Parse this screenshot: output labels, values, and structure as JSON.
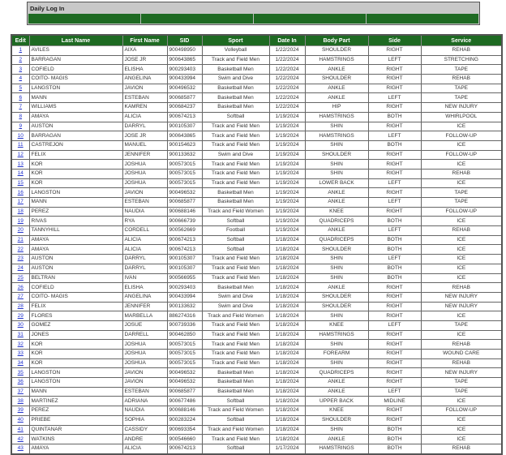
{
  "panel": {
    "title": "Daily Log In"
  },
  "colors": {
    "header_green": "#1e6a22",
    "panel_gray": "#c8c8c8",
    "link": "#2233cc"
  },
  "table": {
    "headers": [
      "Edit",
      "Last Name",
      "First Name",
      "SID",
      "Sport",
      "Date In",
      "Body Part",
      "Side",
      "Service"
    ],
    "rows": [
      [
        "1",
        "AVILES",
        "AIXA",
        "900498950",
        "Volleyball",
        "1/22/2024",
        "SHOULDER",
        "RIGHT",
        "REHAB"
      ],
      [
        "2",
        "BARRAGAN",
        "JOSE JR",
        "900643865",
        "Track and Field Men",
        "1/22/2024",
        "HAMSTRINGS",
        "LEFT",
        "STRETCHING"
      ],
      [
        "3",
        "COFIELD",
        "ELISHA",
        "900293403",
        "Basketball Men",
        "1/22/2024",
        "ANKLE",
        "RIGHT",
        "TAPE"
      ],
      [
        "4",
        "COITO- MAGIS",
        "ANGELINA",
        "900433994",
        "Swim and Dive",
        "1/22/2024",
        "SHOULDER",
        "RIGHT",
        "REHAB"
      ],
      [
        "5",
        "LANGSTON",
        "JAVION",
        "900496532",
        "Basketball Men",
        "1/22/2024",
        "ANKLE",
        "RIGHT",
        "TAPE"
      ],
      [
        "6",
        "MANN",
        "ESTEBAN",
        "900685877",
        "Basketball Men",
        "1/22/2024",
        "ANKLE",
        "LEFT",
        "TAPE"
      ],
      [
        "7",
        "WILLIAMS",
        "KAMREN",
        "900684237",
        "Basketball Men",
        "1/22/2024",
        "HIP",
        "RIGHT",
        "NEW INJURY"
      ],
      [
        "8",
        "AMAYA",
        "ALICIA",
        "900674213",
        "Softball",
        "1/19/2024",
        "HAMSTRINGS",
        "BOTH",
        "WHIRLPOOL"
      ],
      [
        "9",
        "AUSTON",
        "DARRYL",
        "900105307",
        "Track and Field Men",
        "1/19/2024",
        "SHIN",
        "RIGHT",
        "ICE"
      ],
      [
        "10",
        "BARRAGAN",
        "JOSE JR",
        "900643865",
        "Track and Field Men",
        "1/19/2024",
        "HAMSTRINGS",
        "LEFT",
        "FOLLOW-UP"
      ],
      [
        "11",
        "CASTREJON",
        "MANUEL",
        "900154623",
        "Track and Field Men",
        "1/19/2024",
        "SHIN",
        "BOTH",
        "ICE"
      ],
      [
        "12",
        "FELIX",
        "JENNIFER",
        "900133632",
        "Swim and Dive",
        "1/19/2024",
        "SHOULDER",
        "RIGHT",
        "FOLLOW-UP"
      ],
      [
        "13",
        "KOR",
        "JOSHUA",
        "900573015",
        "Track and Field Men",
        "1/19/2024",
        "SHIN",
        "RIGHT",
        "ICE"
      ],
      [
        "14",
        "KOR",
        "JOSHUA",
        "900573015",
        "Track and Field Men",
        "1/19/2024",
        "SHIN",
        "RIGHT",
        "REHAB"
      ],
      [
        "15",
        "KOR",
        "JOSHUA",
        "900573015",
        "Track and Field Men",
        "1/19/2024",
        "LOWER BACK",
        "LEFT",
        "ICE"
      ],
      [
        "16",
        "LANGSTON",
        "JAVION",
        "900496532",
        "Basketball Men",
        "1/19/2024",
        "ANKLE",
        "RIGHT",
        "TAPE"
      ],
      [
        "17",
        "MANN",
        "ESTEBAN",
        "900685877",
        "Basketball Men",
        "1/19/2024",
        "ANKLE",
        "LEFT",
        "TAPE"
      ],
      [
        "18",
        "PEREZ",
        "NAUDIA",
        "900688146",
        "Track and Field Women",
        "1/19/2024",
        "KNEE",
        "RIGHT",
        "FOLLOW-UP"
      ],
      [
        "19",
        "RIVAS",
        "RYA",
        "900666739",
        "Softball",
        "1/19/2024",
        "QUADRICEPS",
        "BOTH",
        "ICE"
      ],
      [
        "20",
        "TANNYHILL",
        "CORDELL",
        "900562669",
        "Football",
        "1/19/2024",
        "ANKLE",
        "LEFT",
        "REHAB"
      ],
      [
        "21",
        "AMAYA",
        "ALICIA",
        "900674213",
        "Softball",
        "1/18/2024",
        "QUADRICEPS",
        "BOTH",
        "ICE"
      ],
      [
        "22",
        "AMAYA",
        "ALICIA",
        "900674213",
        "Softball",
        "1/18/2024",
        "SHOULDER",
        "BOTH",
        "ICE"
      ],
      [
        "23",
        "AUSTON",
        "DARRYL",
        "900105307",
        "Track and Field Men",
        "1/18/2024",
        "SHIN",
        "LEFT",
        "ICE"
      ],
      [
        "24",
        "AUSTON",
        "DARRYL",
        "900105307",
        "Track and Field Men",
        "1/18/2024",
        "SHIN",
        "BOTH",
        "ICE"
      ],
      [
        "25",
        "BELTRAN",
        "IVAN",
        "900566955",
        "Track and Field Men",
        "1/18/2024",
        "SHIN",
        "BOTH",
        "ICE"
      ],
      [
        "26",
        "COFIELD",
        "ELISHA",
        "900293403",
        "Basketball Men",
        "1/18/2024",
        "ANKLE",
        "RIGHT",
        "REHAB"
      ],
      [
        "27",
        "COITO- MAGIS",
        "ANGELINA",
        "900433994",
        "Swim and Dive",
        "1/18/2024",
        "SHOULDER",
        "RIGHT",
        "NEW INJURY"
      ],
      [
        "28",
        "FELIX",
        "JENNIFER",
        "900133632",
        "Swim and Dive",
        "1/18/2024",
        "SHOULDER",
        "RIGHT",
        "NEW INJURY"
      ],
      [
        "29",
        "FLORES",
        "MARBELLA",
        "886274316",
        "Track and Field Women",
        "1/18/2024",
        "SHIN",
        "RIGHT",
        "ICE"
      ],
      [
        "30",
        "GOMEZ",
        "JOSUE",
        "900739336",
        "Track and Field Men",
        "1/18/2024",
        "KNEE",
        "LEFT",
        "TAPE"
      ],
      [
        "31",
        "JONES",
        "DARRELL",
        "900462850",
        "Track and Field Men",
        "1/18/2024",
        "HAMSTRINGS",
        "RIGHT",
        "ICE"
      ],
      [
        "32",
        "KOR",
        "JOSHUA",
        "900573015",
        "Track and Field Men",
        "1/18/2024",
        "SHIN",
        "RIGHT",
        "REHAB"
      ],
      [
        "33",
        "KOR",
        "JOSHUA",
        "900573015",
        "Track and Field Men",
        "1/18/2024",
        "FOREARM",
        "RIGHT",
        "WOUND CARE"
      ],
      [
        "34",
        "KOR",
        "JOSHUA",
        "900573015",
        "Track and Field Men",
        "1/18/2024",
        "SHIN",
        "RIGHT",
        "REHAB"
      ],
      [
        "35",
        "LANGSTON",
        "JAVION",
        "900496532",
        "Basketball Men",
        "1/18/2024",
        "QUADRICEPS",
        "RIGHT",
        "NEW INJURY"
      ],
      [
        "36",
        "LANGSTON",
        "JAVION",
        "900496532",
        "Basketball Men",
        "1/18/2024",
        "ANKLE",
        "RIGHT",
        "TAPE"
      ],
      [
        "37",
        "MANN",
        "ESTEBAN",
        "900685877",
        "Basketball Men",
        "1/18/2024",
        "ANKLE",
        "LEFT",
        "TAPE"
      ],
      [
        "38",
        "MARTINEZ",
        "ADRIANA",
        "900677486",
        "Softball",
        "1/18/2024",
        "UPPER BACK",
        "MIDLINE",
        "ICE"
      ],
      [
        "39",
        "PEREZ",
        "NAUDIA",
        "900688146",
        "Track and Field Women",
        "1/18/2024",
        "KNEE",
        "RIGHT",
        "FOLLOW-UP"
      ],
      [
        "40",
        "PRIEBE",
        "SOPHIA",
        "900283224",
        "Softball",
        "1/18/2024",
        "SHOULDER",
        "RIGHT",
        "ICE"
      ],
      [
        "41",
        "QUINTANAR",
        "CASSIDY",
        "900693354",
        "Track and Field Women",
        "1/18/2024",
        "SHIN",
        "BOTH",
        "ICE"
      ],
      [
        "42",
        "WATKINS",
        "ANDRE",
        "900546660",
        "Track and Field Men",
        "1/18/2024",
        "ANKLE",
        "BOTH",
        "ICE"
      ],
      [
        "43",
        "AMAYA",
        "ALICIA",
        "900674213",
        "Softball",
        "1/17/2024",
        "HAMSTRINGS",
        "BOTH",
        "REHAB"
      ]
    ]
  }
}
